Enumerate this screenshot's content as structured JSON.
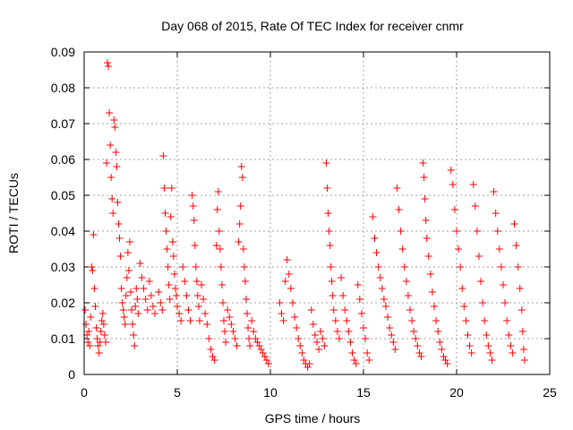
{
  "chart_data": {
    "type": "scatter",
    "title": "Day 068 of 2015, Rate Of TEC Index for receiver cnmr",
    "xlabel": "GPS time / hours",
    "ylabel": "ROTI / TECUs",
    "xlim": [
      0,
      25
    ],
    "ylim": [
      0,
      0.09
    ],
    "x_ticks": [
      0,
      5,
      10,
      15,
      20,
      25
    ],
    "y_ticks": [
      0,
      0.01,
      0.02,
      0.03,
      0.04,
      0.05,
      0.06,
      0.07,
      0.08,
      0.09
    ],
    "x_tick_labels": [
      "0",
      "5",
      "10",
      "15",
      "20",
      "25"
    ],
    "y_tick_labels": [
      "0",
      "0.01",
      "0.02",
      "0.03",
      "0.04",
      "0.05",
      "0.06",
      "0.07",
      "0.08",
      "0.09"
    ],
    "grid": true,
    "marker": "+",
    "marker_color": "#ff0000",
    "series": [
      {
        "name": "ROTI",
        "points": [
          [
            0.05,
            0.018
          ],
          [
            0.1,
            0.014
          ],
          [
            0.15,
            0.011
          ],
          [
            0.2,
            0.009
          ],
          [
            0.25,
            0.012
          ],
          [
            0.3,
            0.008
          ],
          [
            0.35,
            0.016
          ],
          [
            0.4,
            0.03
          ],
          [
            0.45,
            0.029
          ],
          [
            0.5,
            0.039
          ],
          [
            0.55,
            0.024
          ],
          [
            0.6,
            0.019
          ],
          [
            0.65,
            0.013
          ],
          [
            0.7,
            0.01
          ],
          [
            0.75,
            0.008
          ],
          [
            0.8,
            0.006
          ],
          [
            0.85,
            0.009
          ],
          [
            0.9,
            0.012
          ],
          [
            0.95,
            0.015
          ],
          [
            1.0,
            0.017
          ],
          [
            1.05,
            0.014
          ],
          [
            1.1,
            0.011
          ],
          [
            1.15,
            0.009
          ],
          [
            1.2,
            0.059
          ],
          [
            1.25,
            0.087
          ],
          [
            1.3,
            0.086
          ],
          [
            1.35,
            0.073
          ],
          [
            1.4,
            0.064
          ],
          [
            1.45,
            0.055
          ],
          [
            1.5,
            0.049
          ],
          [
            1.55,
            0.045
          ],
          [
            1.6,
            0.071
          ],
          [
            1.65,
            0.069
          ],
          [
            1.7,
            0.062
          ],
          [
            1.75,
            0.058
          ],
          [
            1.8,
            0.048
          ],
          [
            1.85,
            0.042
          ],
          [
            1.9,
            0.038
          ],
          [
            1.95,
            0.033
          ],
          [
            2.0,
            0.024
          ],
          [
            2.05,
            0.02
          ],
          [
            2.1,
            0.018
          ],
          [
            2.15,
            0.016
          ],
          [
            2.2,
            0.014
          ],
          [
            2.25,
            0.022
          ],
          [
            2.3,
            0.027
          ],
          [
            2.35,
            0.034
          ],
          [
            2.4,
            0.029
          ],
          [
            2.45,
            0.037
          ],
          [
            2.5,
            0.023
          ],
          [
            2.55,
            0.018
          ],
          [
            2.6,
            0.014
          ],
          [
            2.65,
            0.011
          ],
          [
            2.7,
            0.008
          ],
          [
            2.75,
            0.019
          ],
          [
            2.8,
            0.024
          ],
          [
            2.85,
            0.021
          ],
          [
            2.9,
            0.017
          ],
          [
            3.0,
            0.031
          ],
          [
            3.1,
            0.027
          ],
          [
            3.2,
            0.024
          ],
          [
            3.3,
            0.021
          ],
          [
            3.4,
            0.018
          ],
          [
            3.5,
            0.026
          ],
          [
            3.6,
            0.022
          ],
          [
            3.7,
            0.019
          ],
          [
            3.8,
            0.017
          ],
          [
            4.0,
            0.023
          ],
          [
            4.1,
            0.02
          ],
          [
            4.2,
            0.018
          ],
          [
            4.25,
            0.061
          ],
          [
            4.3,
            0.052
          ],
          [
            4.35,
            0.045
          ],
          [
            4.4,
            0.04
          ],
          [
            4.45,
            0.035
          ],
          [
            4.5,
            0.03
          ],
          [
            4.55,
            0.025
          ],
          [
            4.6,
            0.021
          ],
          [
            4.65,
            0.044
          ],
          [
            4.7,
            0.052
          ],
          [
            4.75,
            0.037
          ],
          [
            4.8,
            0.033
          ],
          [
            4.85,
            0.028
          ],
          [
            4.9,
            0.024
          ],
          [
            4.95,
            0.022
          ],
          [
            5.0,
            0.019
          ],
          [
            5.1,
            0.017
          ],
          [
            5.2,
            0.015
          ],
          [
            5.3,
            0.03
          ],
          [
            5.4,
            0.026
          ],
          [
            5.5,
            0.022
          ],
          [
            5.6,
            0.018
          ],
          [
            5.7,
            0.015
          ],
          [
            5.8,
            0.05
          ],
          [
            5.85,
            0.047
          ],
          [
            5.9,
            0.043
          ],
          [
            5.95,
            0.036
          ],
          [
            6.0,
            0.03
          ],
          [
            6.05,
            0.026
          ],
          [
            6.1,
            0.022
          ],
          [
            6.15,
            0.019
          ],
          [
            6.2,
            0.015
          ],
          [
            6.3,
            0.025
          ],
          [
            6.4,
            0.021
          ],
          [
            6.5,
            0.017
          ],
          [
            6.6,
            0.014
          ],
          [
            6.7,
            0.01
          ],
          [
            6.8,
            0.007
          ],
          [
            6.9,
            0.005
          ],
          [
            7.0,
            0.004
          ],
          [
            7.1,
            0.036
          ],
          [
            7.15,
            0.046
          ],
          [
            7.2,
            0.051
          ],
          [
            7.25,
            0.04
          ],
          [
            7.3,
            0.035
          ],
          [
            7.35,
            0.03
          ],
          [
            7.4,
            0.025
          ],
          [
            7.45,
            0.02
          ],
          [
            7.5,
            0.015
          ],
          [
            7.55,
            0.012
          ],
          [
            7.6,
            0.009
          ],
          [
            7.7,
            0.018
          ],
          [
            7.8,
            0.016
          ],
          [
            7.9,
            0.014
          ],
          [
            8.0,
            0.012
          ],
          [
            8.1,
            0.01
          ],
          [
            8.2,
            0.008
          ],
          [
            8.3,
            0.037
          ],
          [
            8.35,
            0.042
          ],
          [
            8.4,
            0.047
          ],
          [
            8.45,
            0.058
          ],
          [
            8.5,
            0.055
          ],
          [
            8.55,
            0.035
          ],
          [
            8.6,
            0.03
          ],
          [
            8.65,
            0.026
          ],
          [
            8.7,
            0.021
          ],
          [
            8.75,
            0.017
          ],
          [
            8.8,
            0.013
          ],
          [
            8.85,
            0.01
          ],
          [
            8.9,
            0.008
          ],
          [
            9.0,
            0.015
          ],
          [
            9.1,
            0.012
          ],
          [
            9.2,
            0.01
          ],
          [
            9.3,
            0.009
          ],
          [
            9.4,
            0.008
          ],
          [
            9.5,
            0.007
          ],
          [
            9.6,
            0.006
          ],
          [
            9.7,
            0.005
          ],
          [
            9.8,
            0.004
          ],
          [
            9.9,
            0.003
          ],
          [
            10.5,
            0.02
          ],
          [
            10.6,
            0.017
          ],
          [
            10.7,
            0.015
          ],
          [
            10.8,
            0.026
          ],
          [
            10.9,
            0.032
          ],
          [
            11.0,
            0.028
          ],
          [
            11.1,
            0.024
          ],
          [
            11.2,
            0.02
          ],
          [
            11.3,
            0.016
          ],
          [
            11.4,
            0.013
          ],
          [
            11.5,
            0.01
          ],
          [
            11.6,
            0.008
          ],
          [
            11.7,
            0.006
          ],
          [
            11.8,
            0.004
          ],
          [
            11.9,
            0.003
          ],
          [
            12.0,
            0.002
          ],
          [
            12.1,
            0.003
          ],
          [
            12.2,
            0.018
          ],
          [
            12.3,
            0.014
          ],
          [
            12.4,
            0.011
          ],
          [
            12.5,
            0.009
          ],
          [
            12.6,
            0.007
          ],
          [
            12.7,
            0.012
          ],
          [
            12.8,
            0.01
          ],
          [
            12.9,
            0.008
          ],
          [
            13.0,
            0.059
          ],
          [
            13.05,
            0.052
          ],
          [
            13.1,
            0.045
          ],
          [
            13.15,
            0.04
          ],
          [
            13.2,
            0.036
          ],
          [
            13.25,
            0.03
          ],
          [
            13.3,
            0.026
          ],
          [
            13.35,
            0.022
          ],
          [
            13.4,
            0.018
          ],
          [
            13.5,
            0.015
          ],
          [
            13.6,
            0.012
          ],
          [
            13.7,
            0.01
          ],
          [
            13.8,
            0.027
          ],
          [
            13.9,
            0.022
          ],
          [
            14.0,
            0.018
          ],
          [
            14.1,
            0.015
          ],
          [
            14.2,
            0.012
          ],
          [
            14.3,
            0.009
          ],
          [
            14.4,
            0.006
          ],
          [
            14.5,
            0.004
          ],
          [
            14.6,
            0.003
          ],
          [
            14.7,
            0.025
          ],
          [
            14.8,
            0.021
          ],
          [
            14.9,
            0.017
          ],
          [
            15.0,
            0.013
          ],
          [
            15.1,
            0.01
          ],
          [
            15.2,
            0.006
          ],
          [
            15.3,
            0.004
          ],
          [
            15.5,
            0.044
          ],
          [
            15.6,
            0.038
          ],
          [
            15.7,
            0.034
          ],
          [
            15.8,
            0.03
          ],
          [
            15.9,
            0.027
          ],
          [
            16.0,
            0.024
          ],
          [
            16.1,
            0.021
          ],
          [
            16.2,
            0.019
          ],
          [
            16.3,
            0.016
          ],
          [
            16.4,
            0.013
          ],
          [
            16.5,
            0.011
          ],
          [
            16.6,
            0.009
          ],
          [
            16.7,
            0.007
          ],
          [
            16.8,
            0.052
          ],
          [
            16.9,
            0.046
          ],
          [
            17.0,
            0.04
          ],
          [
            17.1,
            0.035
          ],
          [
            17.2,
            0.03
          ],
          [
            17.3,
            0.026
          ],
          [
            17.4,
            0.022
          ],
          [
            17.5,
            0.018
          ],
          [
            17.6,
            0.015
          ],
          [
            17.7,
            0.012
          ],
          [
            17.8,
            0.01
          ],
          [
            17.9,
            0.008
          ],
          [
            18.0,
            0.006
          ],
          [
            18.1,
            0.005
          ],
          [
            18.2,
            0.059
          ],
          [
            18.25,
            0.055
          ],
          [
            18.3,
            0.049
          ],
          [
            18.35,
            0.043
          ],
          [
            18.4,
            0.038
          ],
          [
            18.5,
            0.033
          ],
          [
            18.6,
            0.028
          ],
          [
            18.7,
            0.023
          ],
          [
            18.8,
            0.019
          ],
          [
            18.9,
            0.015
          ],
          [
            19.0,
            0.012
          ],
          [
            19.1,
            0.009
          ],
          [
            19.2,
            0.007
          ],
          [
            19.3,
            0.005
          ],
          [
            19.4,
            0.004
          ],
          [
            19.5,
            0.003
          ],
          [
            19.7,
            0.057
          ],
          [
            19.8,
            0.053
          ],
          [
            19.9,
            0.046
          ],
          [
            20.0,
            0.04
          ],
          [
            20.1,
            0.035
          ],
          [
            20.2,
            0.03
          ],
          [
            20.3,
            0.024
          ],
          [
            20.4,
            0.019
          ],
          [
            20.5,
            0.015
          ],
          [
            20.6,
            0.011
          ],
          [
            20.7,
            0.008
          ],
          [
            20.8,
            0.006
          ],
          [
            20.9,
            0.053
          ],
          [
            21.0,
            0.047
          ],
          [
            21.1,
            0.04
          ],
          [
            21.2,
            0.033
          ],
          [
            21.3,
            0.026
          ],
          [
            21.4,
            0.02
          ],
          [
            21.5,
            0.015
          ],
          [
            21.6,
            0.011
          ],
          [
            21.7,
            0.008
          ],
          [
            21.8,
            0.006
          ],
          [
            21.9,
            0.004
          ],
          [
            22.0,
            0.051
          ],
          [
            22.1,
            0.045
          ],
          [
            22.2,
            0.04
          ],
          [
            22.3,
            0.035
          ],
          [
            22.4,
            0.03
          ],
          [
            22.5,
            0.025
          ],
          [
            22.6,
            0.02
          ],
          [
            22.7,
            0.015
          ],
          [
            22.8,
            0.011
          ],
          [
            22.9,
            0.008
          ],
          [
            23.0,
            0.006
          ],
          [
            23.1,
            0.042
          ],
          [
            23.2,
            0.036
          ],
          [
            23.3,
            0.03
          ],
          [
            23.4,
            0.024
          ],
          [
            23.5,
            0.018
          ],
          [
            23.55,
            0.012
          ],
          [
            23.6,
            0.007
          ],
          [
            23.65,
            0.004
          ]
        ]
      }
    ]
  }
}
